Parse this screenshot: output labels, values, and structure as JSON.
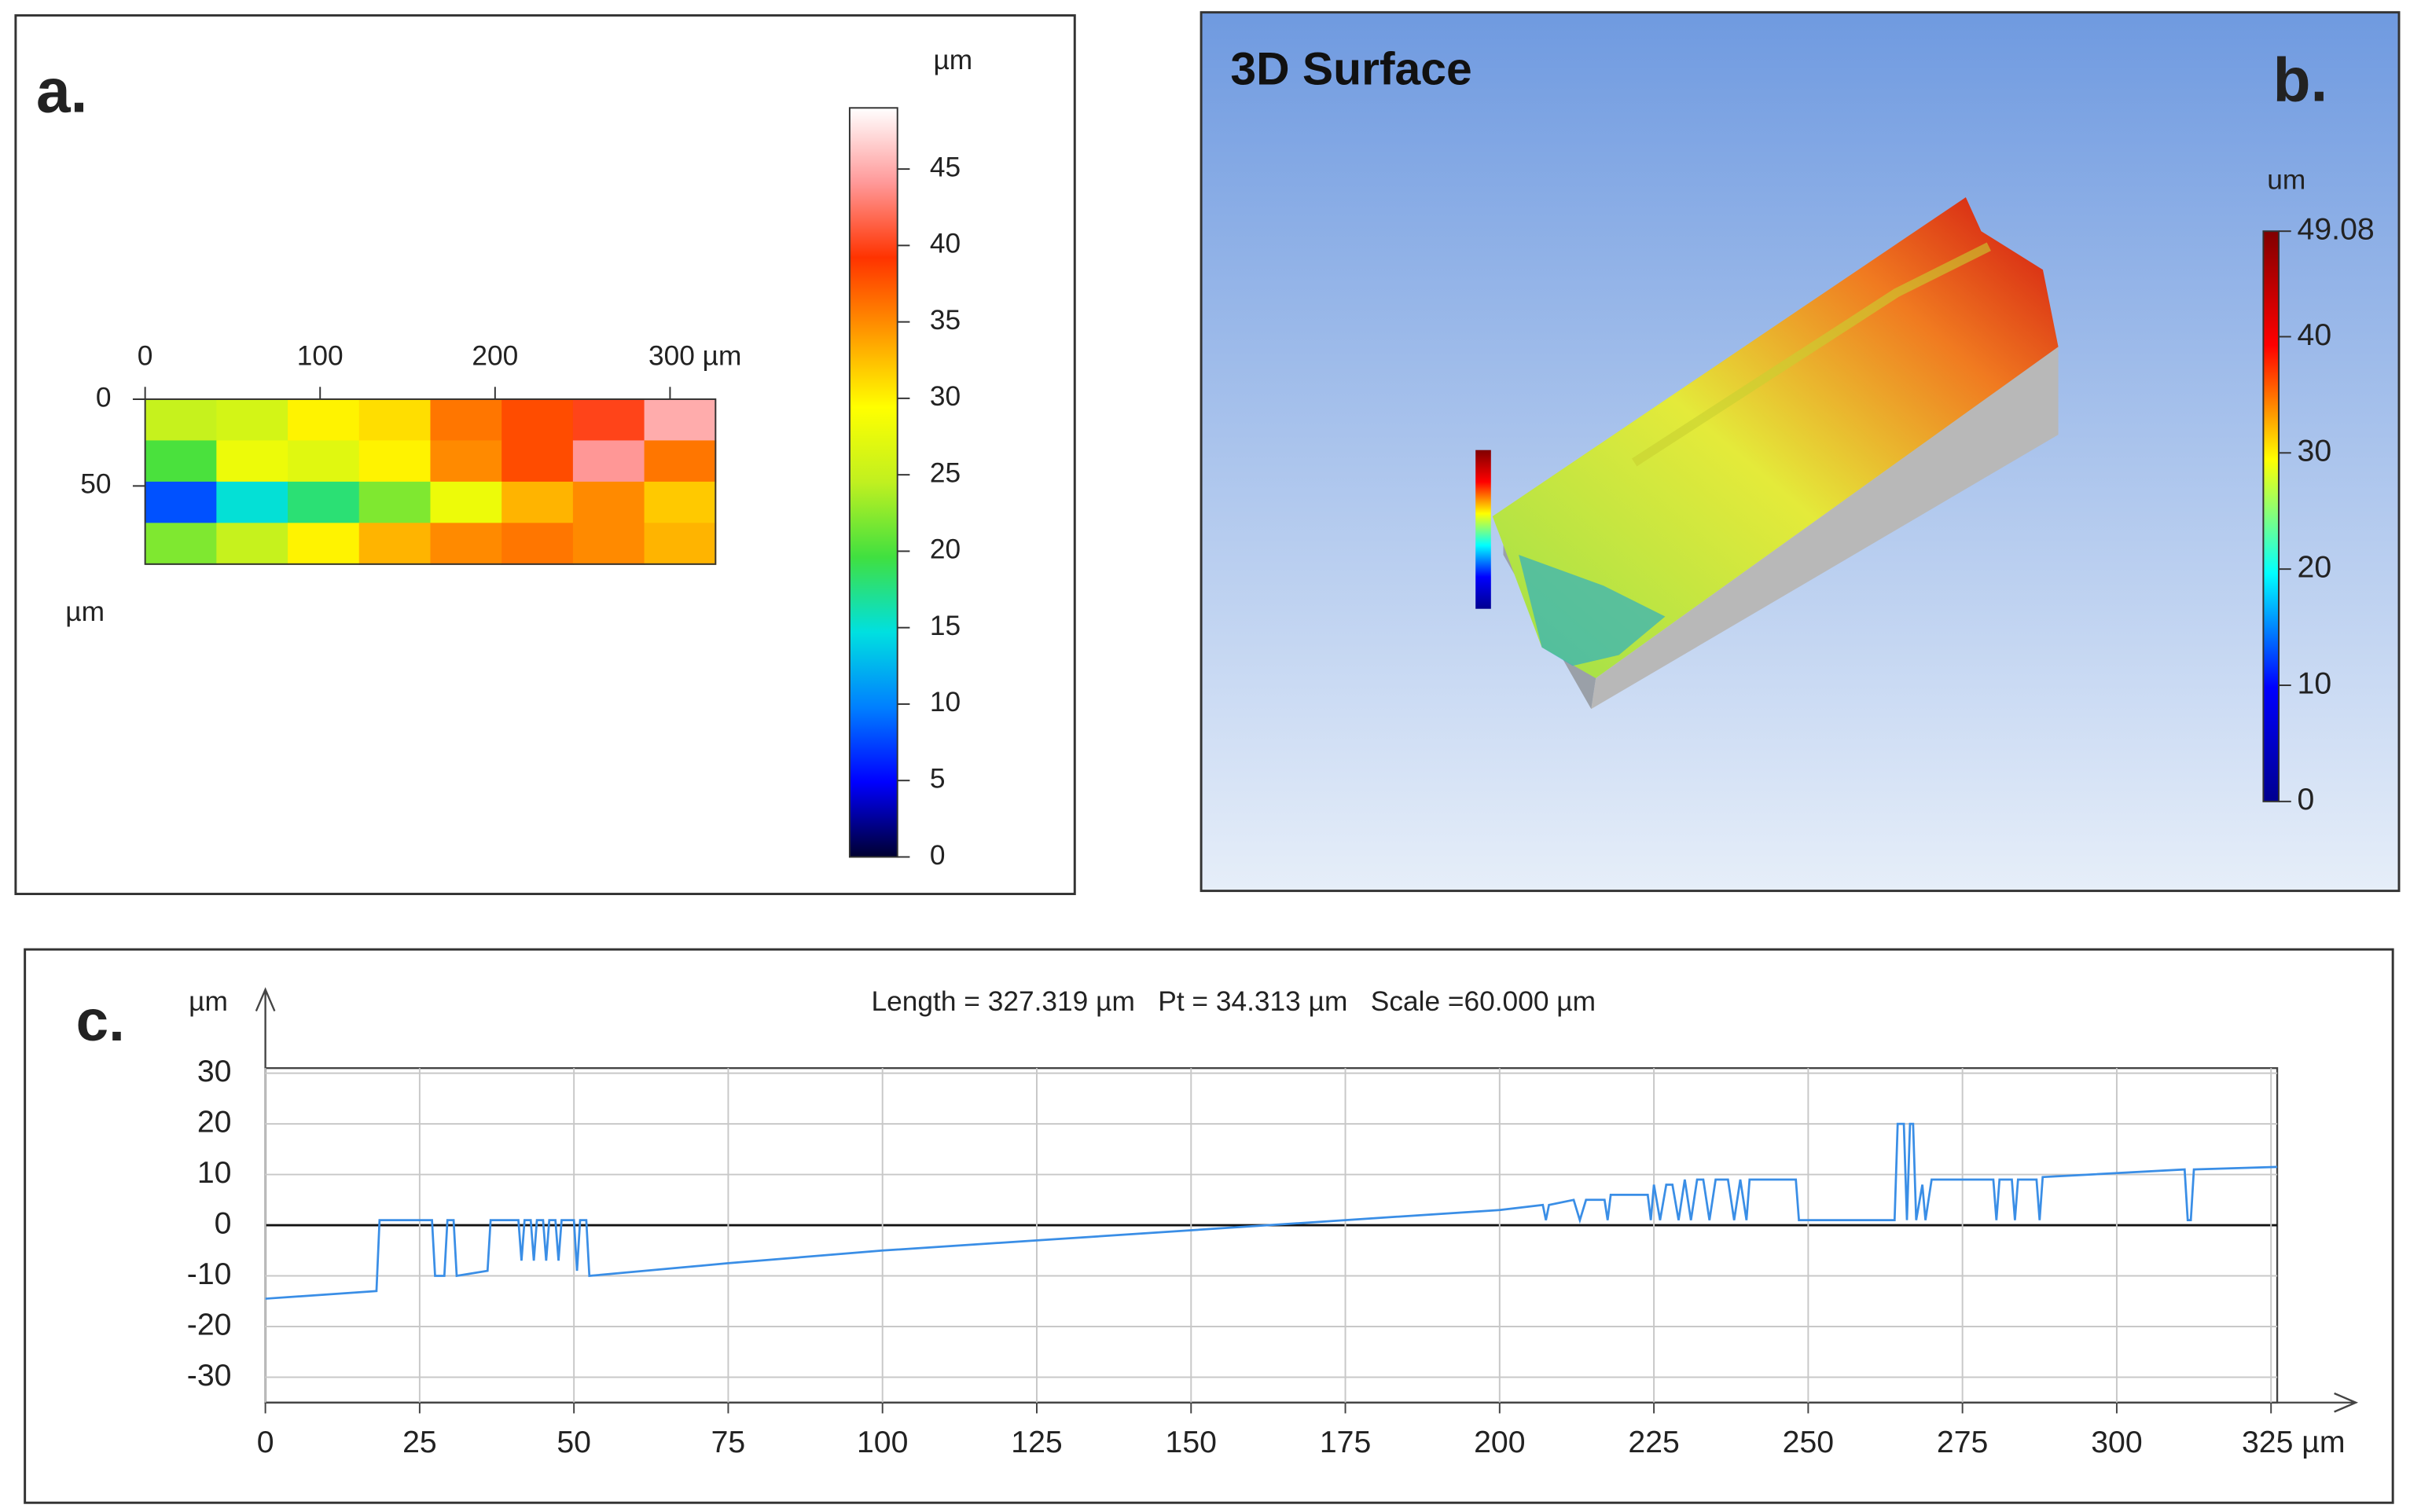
{
  "chart_data": [
    {
      "type": "heatmap",
      "label": "a.",
      "ylabel": "µm",
      "xlim": [
        0,
        326
      ],
      "ylim": [
        0,
        95
      ],
      "xticks": [
        0,
        100,
        200,
        {
          "value": 300,
          "label": "300 µm"
        }
      ],
      "yticks": [
        0,
        50
      ],
      "z": [
        [
          25,
          26,
          30,
          31,
          36,
          38,
          40,
          45
        ],
        [
          20,
          28,
          27,
          30,
          35,
          38,
          44,
          36
        ],
        [
          8,
          15,
          18,
          22,
          28,
          33,
          35,
          32
        ],
        [
          22,
          25,
          30,
          33,
          35,
          36,
          35,
          33
        ]
      ],
      "colorbar": {
        "unit": "µm",
        "clim": [
          0,
          49
        ],
        "ticks": [
          0,
          5,
          10,
          15,
          20,
          25,
          30,
          35,
          40,
          45
        ],
        "colormap": [
          "#000030",
          "#0000ff",
          "#0080ff",
          "#00e0e0",
          "#40e040",
          "#c0f020",
          "#ffff00",
          "#ff9900",
          "#ff3300",
          "#ff9999",
          "#ffffff"
        ]
      }
    },
    {
      "type": "surface3d",
      "title": "3D Surface",
      "label": "b.",
      "colorbar": {
        "unit": "um",
        "clim": [
          0,
          49.08
        ],
        "ticks": [
          0,
          10,
          20,
          30,
          40,
          49.08
        ],
        "colormap": [
          "#00008f",
          "#0000ff",
          "#00ffff",
          "#ffff00",
          "#ff0000",
          "#800000"
        ]
      }
    },
    {
      "type": "line",
      "label": "c.",
      "annotation": "Length = 327.319 µm   Pt = 34.313 µm   Scale =60.000 µm",
      "ylabel": "µm",
      "xlim": [
        0,
        326
      ],
      "ylim": [
        -35,
        31
      ],
      "xticks": [
        0,
        25,
        50,
        75,
        100,
        125,
        150,
        175,
        200,
        225,
        250,
        275,
        300,
        {
          "value": 325,
          "label": "325 µm"
        }
      ],
      "yticks": [
        -30,
        -20,
        -10,
        0,
        10,
        20,
        30
      ],
      "grid": true,
      "x": [
        0,
        18,
        18.5,
        27,
        27.5,
        29,
        29.5,
        30.5,
        31,
        36,
        36.5,
        41,
        41.5,
        42,
        43,
        43.5,
        44,
        45,
        45.5,
        46,
        47,
        47.5,
        48,
        50,
        50.5,
        51,
        52,
        52.5,
        75,
        100,
        125,
        150,
        175,
        200,
        207,
        207.5,
        208,
        212,
        213,
        214,
        217,
        217.5,
        218,
        224,
        224.5,
        225,
        226,
        227,
        228,
        229,
        230,
        231,
        232,
        233,
        234,
        235,
        237,
        238,
        239,
        240,
        240.5,
        248,
        248.5,
        264,
        264.5,
        265.5,
        266,
        266.5,
        267,
        267.5,
        268.5,
        269,
        270,
        280,
        280.5,
        281,
        283,
        283.5,
        284,
        287,
        287.5,
        288,
        311,
        311.5,
        312,
        312.5,
        326
      ],
      "series": [
        {
          "color": "#3a8ee6",
          "values": [
            -14.5,
            -13,
            1,
            1,
            -10,
            -10,
            1,
            1,
            -10,
            -9,
            1,
            1,
            -7,
            1,
            1,
            -7,
            1,
            1,
            -7,
            1,
            1,
            -7,
            1,
            1,
            -9,
            1,
            1,
            -10,
            -7.5,
            -5,
            -3,
            -1,
            1,
            3,
            4,
            1,
            4,
            5,
            1,
            5,
            5,
            1,
            6,
            6,
            1,
            8,
            1,
            8,
            8,
            1,
            9,
            1,
            9,
            9,
            1,
            9,
            9,
            1,
            9,
            1,
            9,
            9,
            1,
            1,
            20,
            20,
            1,
            20,
            20,
            1,
            8,
            1,
            9,
            9,
            1,
            9,
            9,
            1,
            9,
            9,
            1,
            9.5,
            11,
            1,
            1,
            11,
            11.5
          ]
        }
      ]
    }
  ]
}
